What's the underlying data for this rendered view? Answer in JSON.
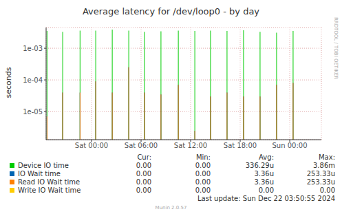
{
  "chart_data": {
    "type": "bar",
    "title": "Average latency for /dev/loop0 - by day",
    "ylabel": "seconds",
    "side_text": "RRDTOOL / TOBI OETIKER",
    "log": "y",
    "grid": true,
    "x": [
      -5.4,
      -3.5,
      -1.4,
      0.5,
      2.5,
      4.5,
      6.4,
      8.4,
      10.5,
      12.5,
      14.4,
      16.4,
      18.4,
      20.4,
      22.4,
      24.4
    ],
    "xlim": [
      -5.5,
      27.83
    ],
    "xticks": [
      {
        "value": 0,
        "label": "Sat 00:00"
      },
      {
        "value": 6,
        "label": "Sat 06:00"
      },
      {
        "value": 12,
        "label": "Sat 12:00"
      },
      {
        "value": 18,
        "label": "Sat 18:00"
      },
      {
        "value": 24,
        "label": "Sun 00:00"
      }
    ],
    "ylim": [
      1.3e-06,
      0.0045
    ],
    "yticks": [
      {
        "value": 1e-05,
        "label": "1e-05"
      },
      {
        "value": 0.0001,
        "label": "1e-04"
      },
      {
        "value": 0.001,
        "label": "1e-03"
      }
    ],
    "stats_columns": [
      "Cur:",
      "Min:",
      "Avg:",
      "Max:"
    ],
    "series": [
      {
        "name": "Device IO time",
        "color": "#00cc00",
        "values": [
          0.0035,
          0.0033,
          0.0036,
          0.0036,
          0.00386,
          0.0036,
          0.0033,
          0.0034,
          0.0036,
          0.0035,
          0.0036,
          0.0035,
          0.0037,
          0.0033,
          0.0031,
          0.0035
        ],
        "stats": [
          "0.00",
          "0.00",
          "336.29u",
          "3.86m"
        ]
      },
      {
        "name": "IO Wait time",
        "color": "#0066b3",
        "values": [
          7e-06,
          4e-05,
          4e-05,
          9e-05,
          4e-05,
          0.00025,
          4e-05,
          3.5e-05,
          7e-05,
          2.5e-06,
          3e-05,
          4e-05,
          3e-05,
          3e-05,
          7e-05,
          8e-05
        ],
        "stats": [
          "0.00",
          "0.00",
          "3.36u",
          "253.33u"
        ]
      },
      {
        "name": "Read IO Wait time",
        "color": "#ff8000",
        "values": [
          7e-06,
          4e-05,
          4e-05,
          9e-05,
          4e-05,
          0.00025,
          4e-05,
          3.5e-05,
          7e-05,
          2.5e-06,
          3e-05,
          4e-05,
          3e-05,
          3e-05,
          7e-05,
          8e-05
        ],
        "stats": [
          "0.00",
          "0.00",
          "3.36u",
          "253.33u"
        ]
      },
      {
        "name": "Write IO Wait time",
        "color": "#ffcc00",
        "values": [
          null,
          null,
          null,
          null,
          null,
          null,
          null,
          null,
          null,
          null,
          null,
          null,
          null,
          null,
          null,
          null
        ],
        "stats": [
          "0.00",
          "0.00",
          "0.00",
          "0.00"
        ]
      }
    ],
    "footer": "Last update: Sun Dec 22 03:50:55 2024",
    "credit": "Munin 2.0.57"
  }
}
